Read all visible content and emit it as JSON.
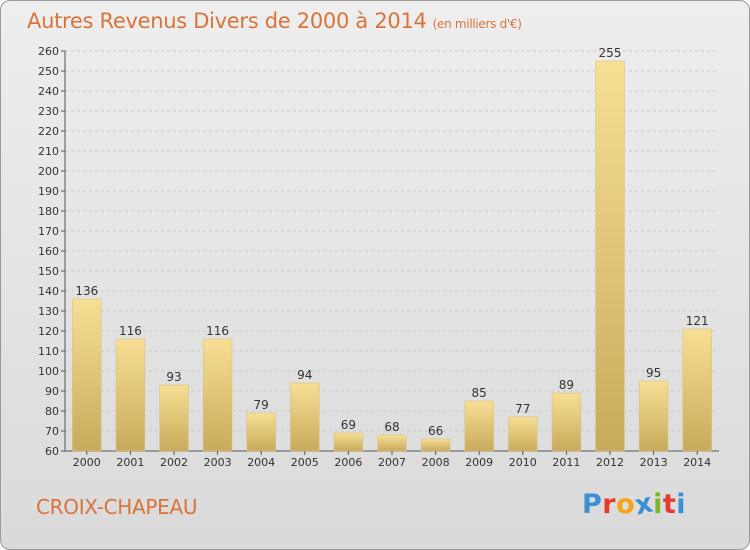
{
  "header": {
    "title": "Autres Revenus Divers de 2000 à 2014",
    "unit": "(en milliers d'€)"
  },
  "footer": {
    "place": "CROIX-CHAPEAU",
    "logo_text": "Proxiti",
    "logo_colors": [
      "#3a8fd6",
      "#e63a2e",
      "#f2a51a",
      "#3a8fd6",
      "#7ab829",
      "#e63a2e",
      "#3a8fd6"
    ]
  },
  "colors": {
    "bar_light": "#f7df95",
    "bar_dark": "#c9aa5c",
    "grid": "#c8c8c8",
    "title": "#d8743a"
  },
  "chart_data": {
    "type": "bar",
    "title": "Autres Revenus Divers de 2000 à 2014",
    "subtitle": "(en milliers d'€)",
    "categories": [
      "2000",
      "2001",
      "2002",
      "2003",
      "2004",
      "2005",
      "2006",
      "2007",
      "2008",
      "2009",
      "2010",
      "2011",
      "2012",
      "2013",
      "2014"
    ],
    "values": [
      136,
      116,
      93,
      116,
      79,
      94,
      69,
      68,
      66,
      85,
      77,
      89,
      255,
      95,
      121
    ],
    "xlabel": "",
    "ylabel": "",
    "ylim": [
      60,
      260
    ],
    "yticks": [
      60,
      70,
      80,
      90,
      100,
      110,
      120,
      130,
      140,
      150,
      160,
      170,
      180,
      190,
      200,
      210,
      220,
      230,
      240,
      250,
      260
    ],
    "grid": true,
    "legend": "none"
  }
}
